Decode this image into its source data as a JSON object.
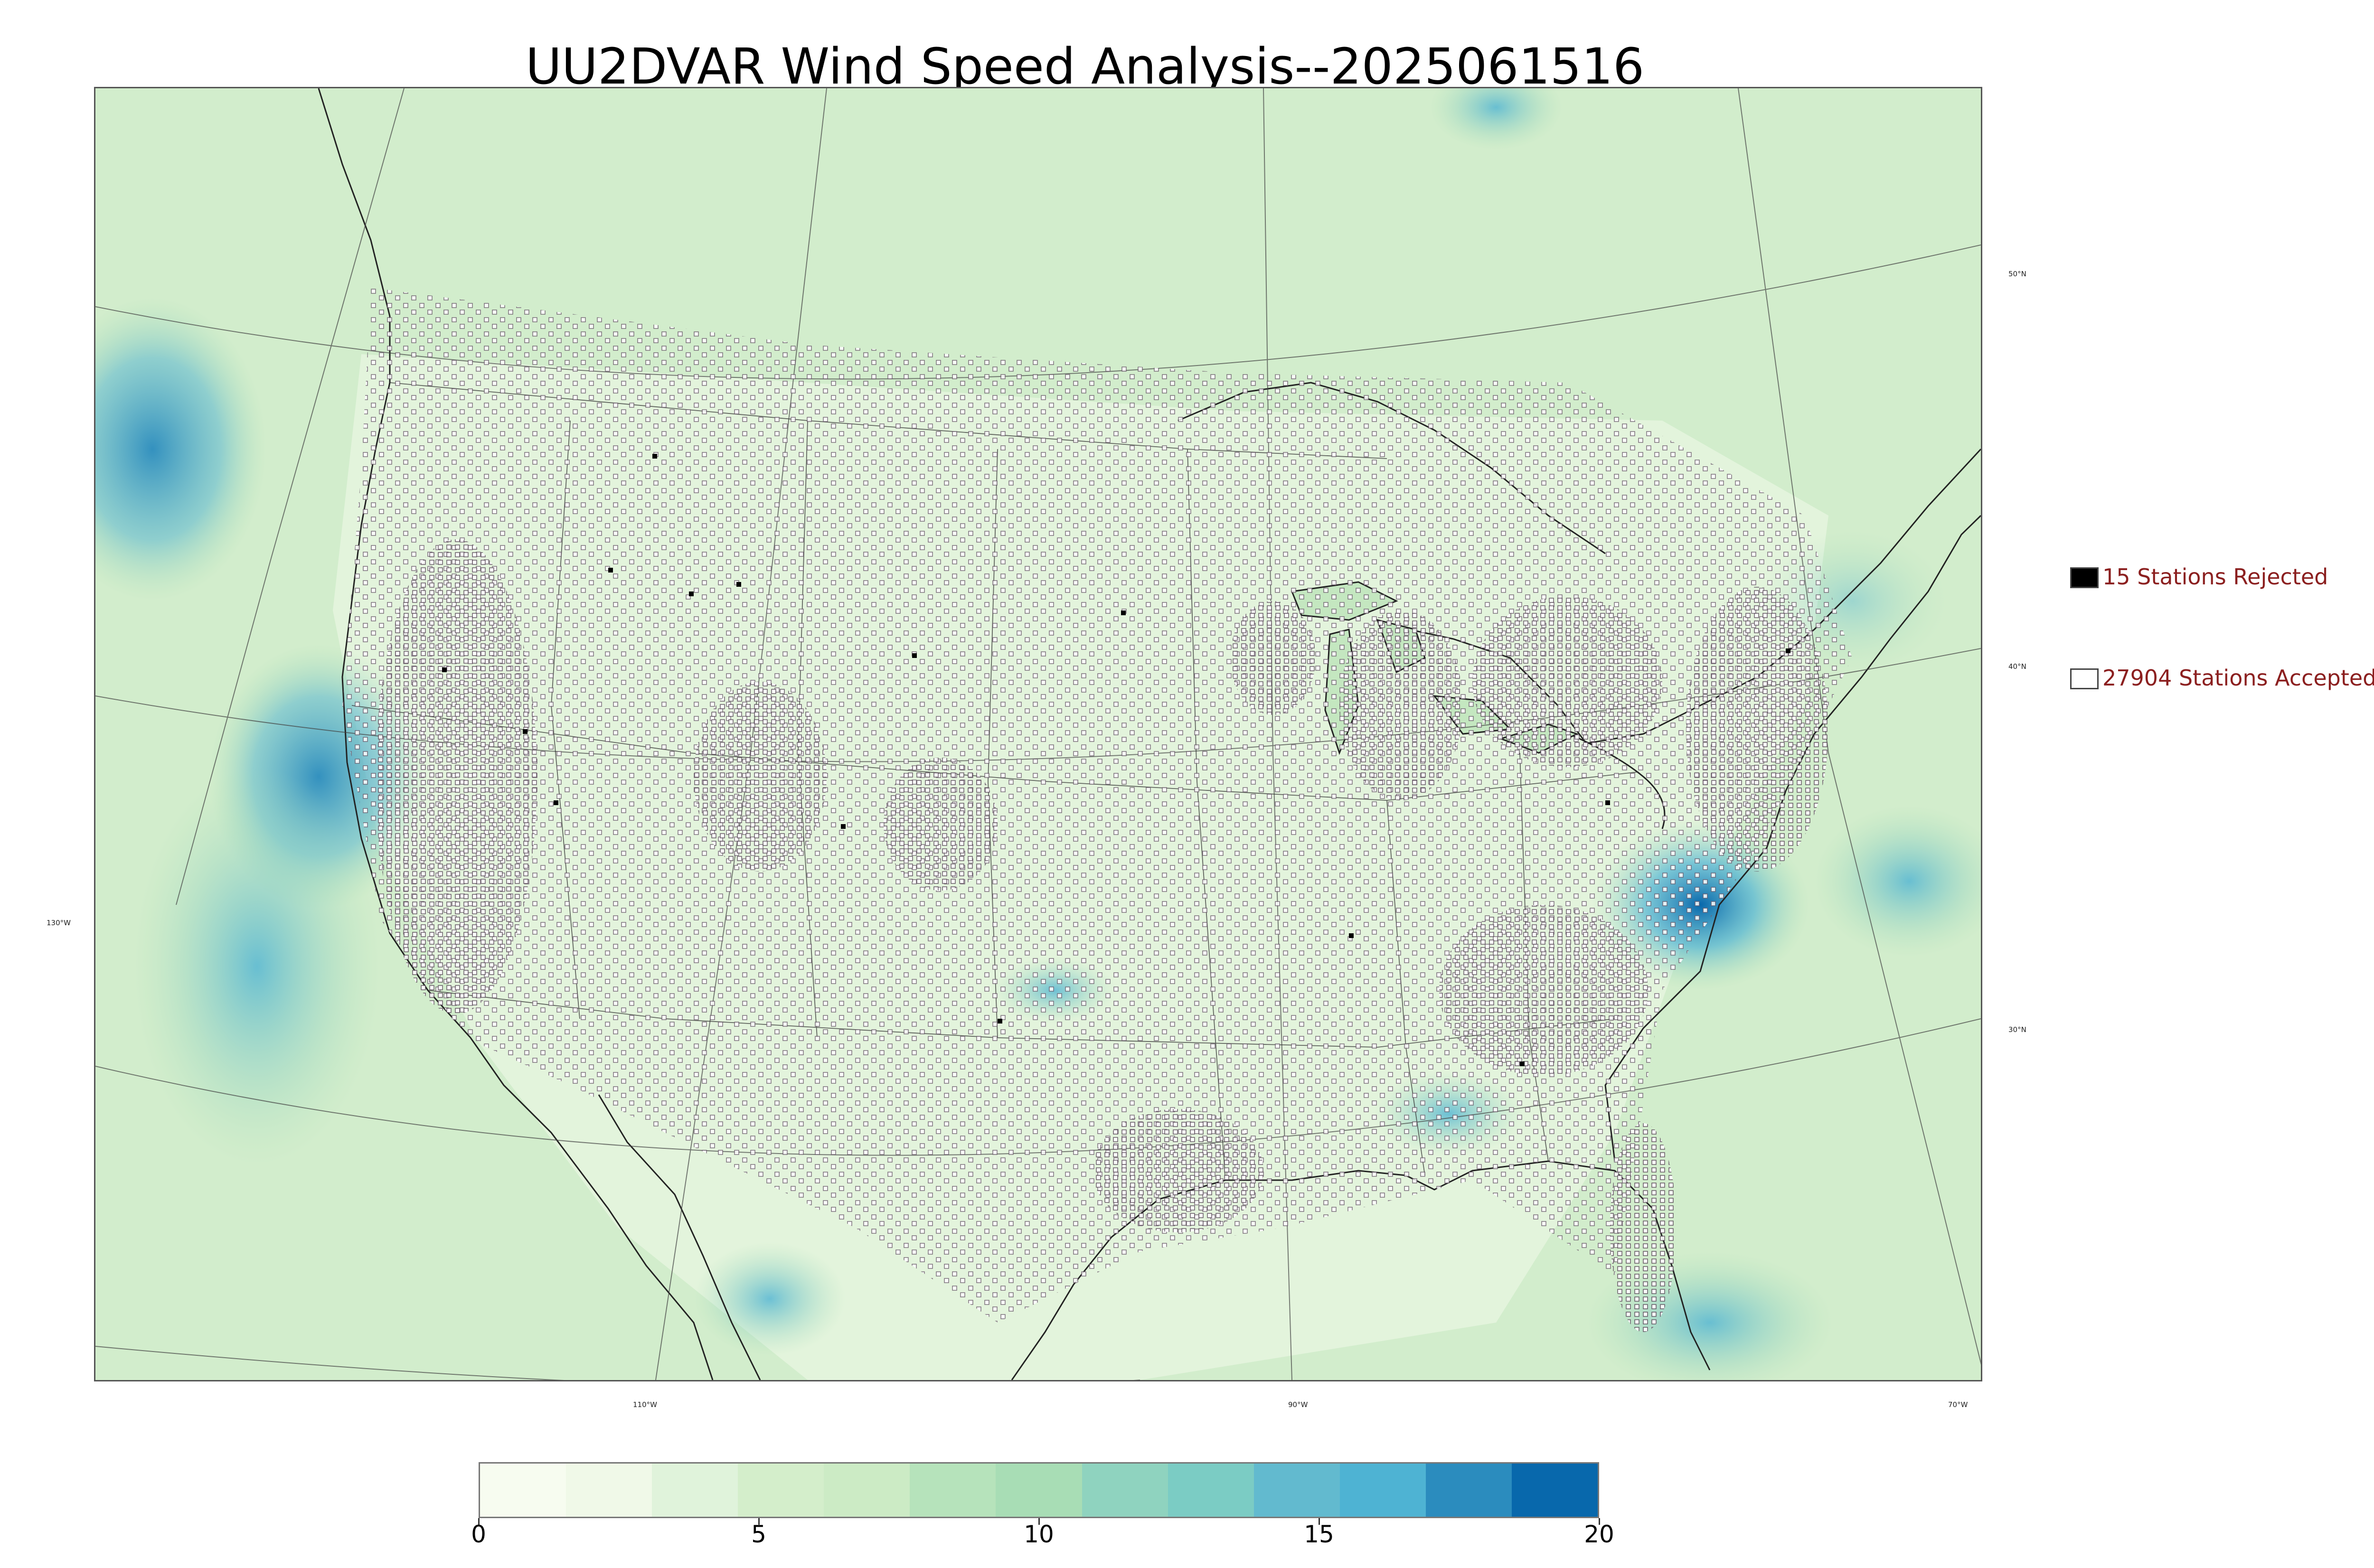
{
  "title": "UU2DVAR Wind Speed Analysis--2025061516",
  "map": {
    "lat_labels": [
      "50°N",
      "40°N",
      "30°N"
    ],
    "lon_labels": [
      "130°W",
      "110°W",
      "90°W",
      "70°W"
    ]
  },
  "legend": {
    "rejected": {
      "label": "15 Stations Rejected",
      "count": 15,
      "swatch_color": "#000000"
    },
    "accepted": {
      "label": "27904 Stations Accepted",
      "count": 27904,
      "swatch_color": "#ffffff"
    }
  },
  "colorbar": {
    "min": 0,
    "max": 20,
    "tick_labels": [
      "0",
      "5",
      "10",
      "15",
      "20"
    ],
    "colors": [
      "#f7fcf0",
      "#f0f9e8",
      "#e0f3db",
      "#d4eecb",
      "#ccebc5",
      "#b6e3bb",
      "#a8ddb5",
      "#8fd3bf",
      "#7bccc4",
      "#62bacf",
      "#4eb3d3",
      "#2b8cbe",
      "#0868ac"
    ]
  }
}
